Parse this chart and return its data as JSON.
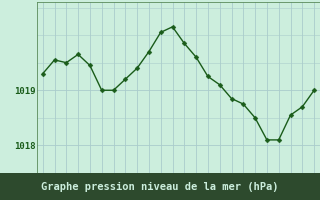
{
  "hours": [
    0,
    1,
    2,
    3,
    4,
    5,
    6,
    7,
    8,
    9,
    10,
    11,
    12,
    13,
    14,
    15,
    16,
    17,
    18,
    19,
    20,
    21,
    22,
    23
  ],
  "pressure": [
    1019.3,
    1019.55,
    1019.5,
    1019.65,
    1019.45,
    1019.0,
    1019.0,
    1019.2,
    1019.4,
    1019.7,
    1020.05,
    1020.15,
    1019.85,
    1019.6,
    1019.25,
    1019.1,
    1018.85,
    1018.75,
    1018.5,
    1018.1,
    1018.1,
    1018.55,
    1018.7,
    1019.0
  ],
  "bg_color": "#cceedd",
  "line_color": "#1a5c1a",
  "grid_color": "#aacccc",
  "border_color": "#5a8a5a",
  "xlabel": "Graphe pression niveau de la mer (hPa)",
  "ylabel_ticks": [
    1018,
    1019
  ],
  "ylim": [
    1017.5,
    1020.6
  ],
  "marker": "D",
  "marker_size": 2.5,
  "line_width": 1.0,
  "xlabel_fontsize": 7.5,
  "tick_fontsize": 6.5,
  "bottom_bg": "#2d4a2d",
  "bottom_text_color": "#cceedd",
  "bottom_bar_height": 0.135
}
